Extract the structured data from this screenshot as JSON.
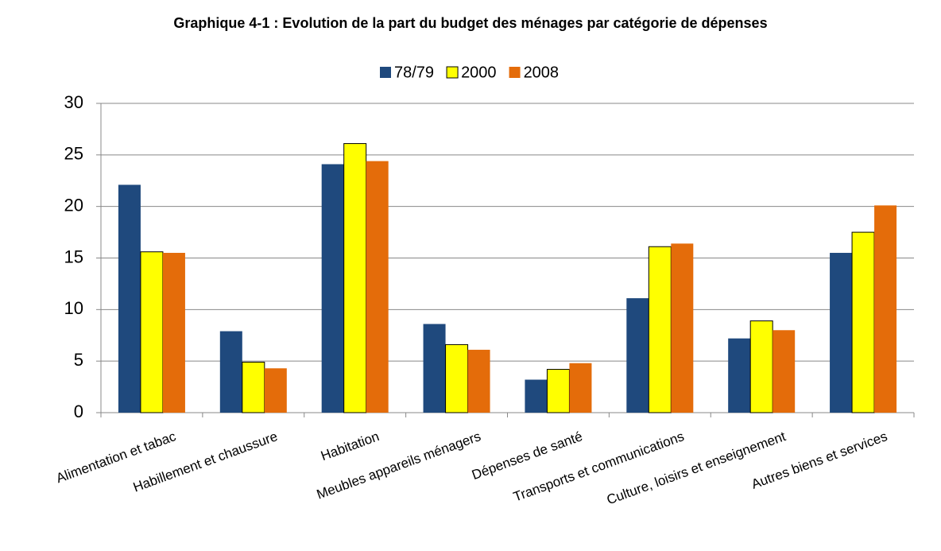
{
  "chart_data": {
    "type": "bar",
    "title": "Graphique 4-1 : Evolution de la part du budget des ménages par catégorie de dépenses",
    "categories": [
      "Alimentation et tabac",
      "Habillement et chaussure",
      "Habitation",
      "Meubles appareils ménagers",
      "Dépenses de santé",
      "Transports et communications",
      "Culture, loisirs et enseignement",
      "Autres biens et services"
    ],
    "series": [
      {
        "name": "78/79",
        "color": "#1f497d",
        "values": [
          22.1,
          7.9,
          24.1,
          8.6,
          3.2,
          11.1,
          7.2,
          15.5
        ]
      },
      {
        "name": "2000",
        "color": "#ffff00",
        "values": [
          15.6,
          4.9,
          26.1,
          6.6,
          4.2,
          16.1,
          8.9,
          17.5
        ]
      },
      {
        "name": "2008",
        "color": "#e46c0a",
        "values": [
          15.5,
          4.3,
          24.4,
          6.1,
          4.8,
          16.4,
          8.0,
          20.1
        ]
      }
    ],
    "ylim": [
      0,
      30
    ],
    "yticks": [
      0,
      5,
      10,
      15,
      20,
      25,
      30
    ],
    "grid": true,
    "legend": "top"
  }
}
